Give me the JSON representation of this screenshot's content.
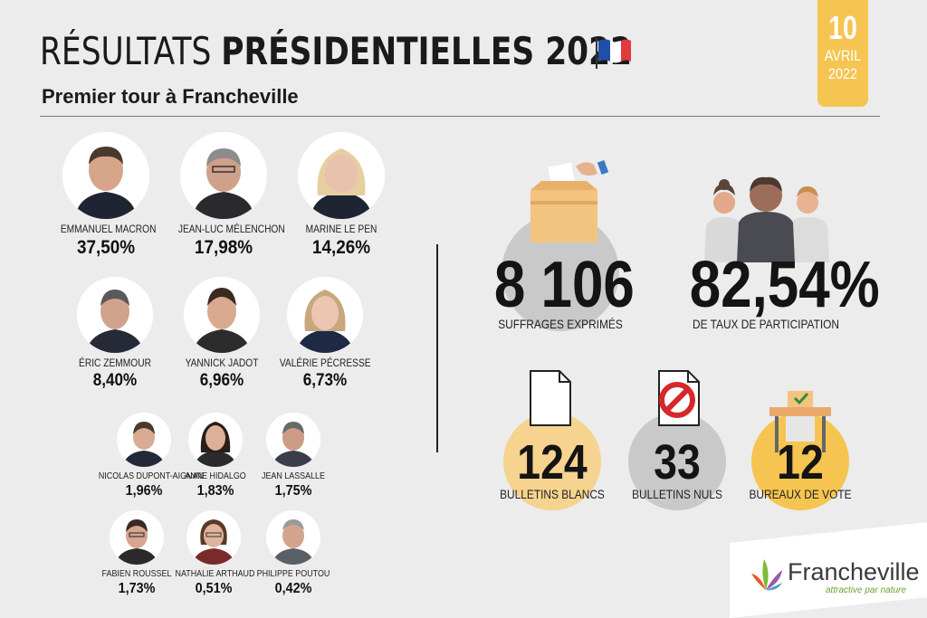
{
  "header": {
    "title_light": "RÉSULTATS",
    "title_bold": "PRÉSIDENTIELLES 2022",
    "subtitle": "Premier tour à Francheville",
    "date_day": "10",
    "date_month": "AVRIL",
    "date_year": "2022"
  },
  "candidates": [
    {
      "name": "EMMANUEL MACRON",
      "pct": "37,50%"
    },
    {
      "name": "JEAN-LUC MÉLENCHON",
      "pct": "17,98%"
    },
    {
      "name": "MARINE LE PEN",
      "pct": "14,26%"
    },
    {
      "name": "ÉRIC ZEMMOUR",
      "pct": "8,40%"
    },
    {
      "name": "YANNICK JADOT",
      "pct": "6,96%"
    },
    {
      "name": "VALÉRIE PÉCRESSE",
      "pct": "6,73%"
    },
    {
      "name": "NICOLAS DUPONT-AIGNAN",
      "pct": "1,96%"
    },
    {
      "name": "ANNE HIDALGO",
      "pct": "1,83%"
    },
    {
      "name": "JEAN LASSALLE",
      "pct": "1,75%"
    },
    {
      "name": "FABIEN ROUSSEL",
      "pct": "1,73%"
    },
    {
      "name": "NATHALIE ARTHAUD",
      "pct": "0,51%"
    },
    {
      "name": "PHILIPPE POUTOU",
      "pct": "0,42%"
    }
  ],
  "stats": {
    "suffrages": {
      "value": "8 106",
      "label": "SUFFRAGES EXPRIMÉS"
    },
    "participation": {
      "value": "82,54%",
      "label": "DE TAUX DE PARTICIPATION"
    },
    "blancs": {
      "value": "124",
      "label": "BULLETINS BLANCS"
    },
    "nuls": {
      "value": "33",
      "label": "BULLETINS NULS"
    },
    "bureaux": {
      "value": "12",
      "label": "BUREAUX DE VOTE"
    }
  },
  "logo": {
    "name": "Francheville",
    "tagline": "attractive par nature"
  },
  "colors": {
    "background": "#ececec",
    "accent_yellow": "#f6c450",
    "gray_circle": "#c9c9c9",
    "light_yellow": "#f6d38e",
    "ballot_box": "#f3c47f",
    "logo_green": "#6aa233"
  },
  "icons": [
    "french-flag-icon",
    "ballot-box-icon",
    "people-icon",
    "blank-ballot-icon",
    "null-ballot-icon",
    "polling-booth-icon",
    "francheville-leaves-icon"
  ]
}
